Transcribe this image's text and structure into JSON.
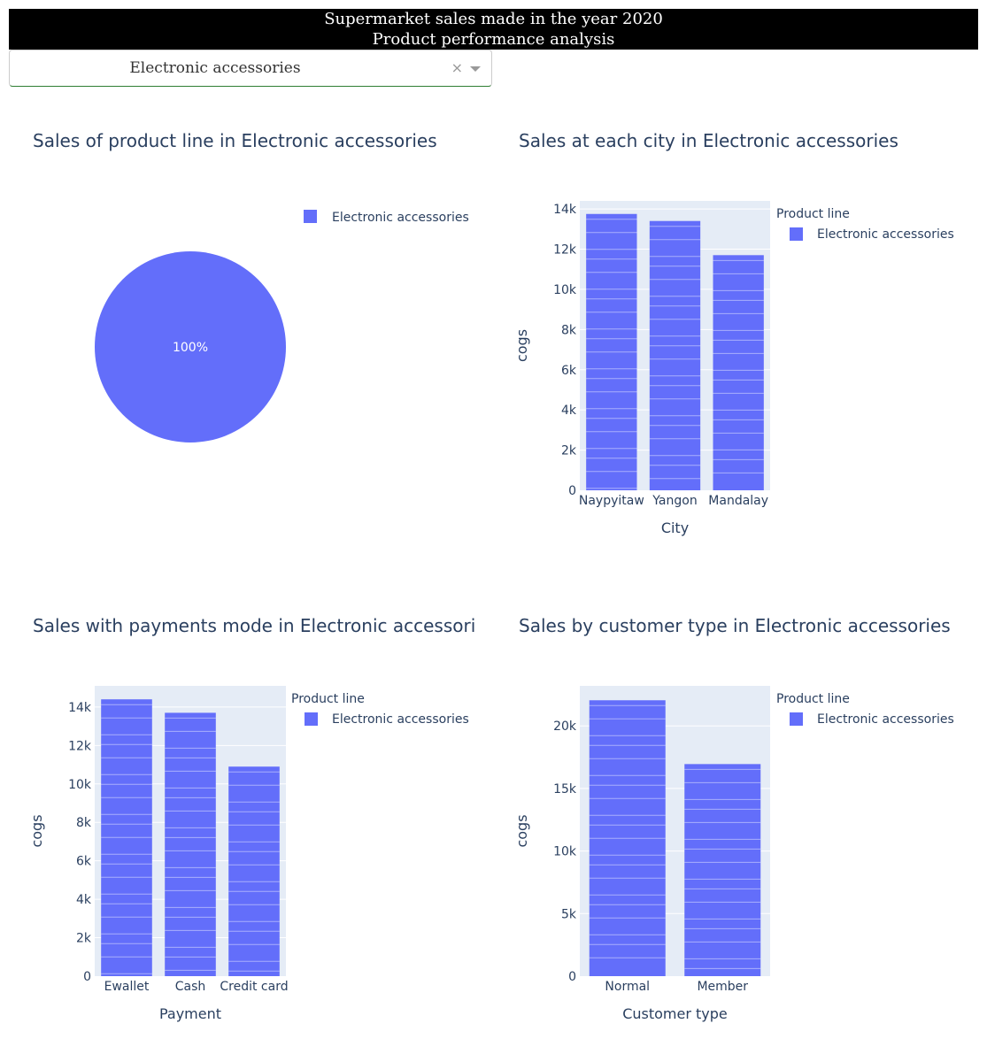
{
  "header": {
    "title": "Supermarket sales made in the year 2020",
    "subtitle": "Product performance analysis"
  },
  "dropdown": {
    "selected": "Electronic accessories",
    "clear_glyph": "×"
  },
  "colors": {
    "bar": "#636efa",
    "plot_bg": "#e5ecf6",
    "grid": "#ffffff",
    "text": "#2a3f5f",
    "header_bg": "#000000"
  },
  "chart_data": [
    {
      "type": "pie",
      "title": "Sales of product line in Electronic accessories",
      "labels": [
        "Electronic accessories"
      ],
      "values": [
        100
      ],
      "slice_labels": [
        "100%"
      ],
      "legend": [
        "Electronic accessories"
      ]
    },
    {
      "type": "bar",
      "title": "Sales at each city in Electronic accessories",
      "xlabel": "City",
      "ylabel": "cogs",
      "categories": [
        "Naypyitaw",
        "Yangon",
        "Mandalay"
      ],
      "values": [
        13750,
        13400,
        11700
      ],
      "ylim": [
        0,
        14400
      ],
      "yticks": [
        0,
        2000,
        4000,
        6000,
        8000,
        10000,
        12000,
        14000
      ],
      "ytick_labels": [
        "0",
        "2k",
        "4k",
        "6k",
        "8k",
        "10k",
        "12k",
        "14k"
      ],
      "legend_title": "Product line",
      "legend": [
        "Electronic accessories"
      ]
    },
    {
      "type": "bar",
      "title": "Sales with payments mode in Electronic accessori",
      "xlabel": "Payment",
      "ylabel": "cogs",
      "categories": [
        "Ewallet",
        "Cash",
        "Credit card"
      ],
      "values": [
        14400,
        13700,
        10900
      ],
      "ylim": [
        0,
        15100
      ],
      "yticks": [
        0,
        2000,
        4000,
        6000,
        8000,
        10000,
        12000,
        14000
      ],
      "ytick_labels": [
        "0",
        "2k",
        "4k",
        "6k",
        "8k",
        "10k",
        "12k",
        "14k"
      ],
      "legend_title": "Product line",
      "legend": [
        "Electronic accessories"
      ]
    },
    {
      "type": "bar",
      "title": "Sales by customer type in Electronic accessories",
      "xlabel": "Customer type",
      "ylabel": "cogs",
      "categories": [
        "Normal",
        "Member"
      ],
      "values": [
        22050,
        16950
      ],
      "ylim": [
        0,
        23200
      ],
      "yticks": [
        0,
        5000,
        10000,
        15000,
        20000
      ],
      "ytick_labels": [
        "0",
        "5k",
        "10k",
        "15k",
        "20k"
      ],
      "legend_title": "Product line",
      "legend": [
        "Electronic accessories"
      ]
    }
  ]
}
